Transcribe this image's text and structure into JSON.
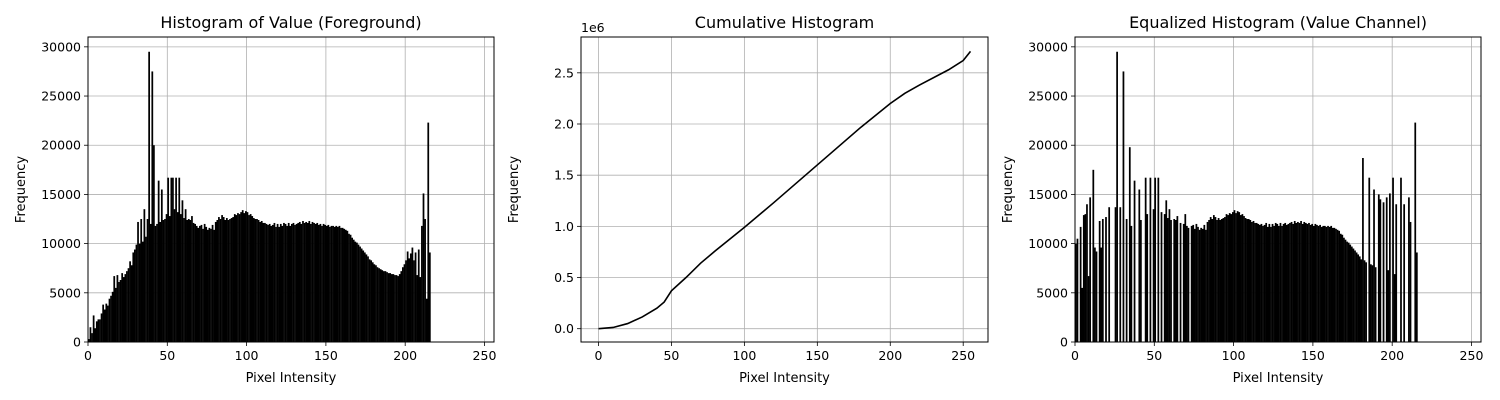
{
  "chart_data": [
    {
      "type": "bar",
      "title": "Histogram of Value (Foreground)",
      "xlabel": "Pixel Intensity",
      "ylabel": "Frequency",
      "xlim": [
        0,
        256
      ],
      "ylim": [
        0,
        31000
      ],
      "xticks": [
        0,
        50,
        100,
        150,
        200,
        250
      ],
      "yticks": [
        0,
        5000,
        10000,
        15000,
        20000,
        25000,
        30000
      ],
      "grid": true,
      "bar_color": "#000000",
      "values": [
        300,
        1500,
        900,
        2700,
        1400,
        2100,
        2300,
        2300,
        2900,
        3800,
        3300,
        3900,
        3700,
        4400,
        4700,
        5100,
        6700,
        5500,
        6800,
        6100,
        6300,
        7000,
        6600,
        6900,
        7200,
        7500,
        8200,
        7800,
        9100,
        9400,
        9900,
        12200,
        10000,
        12500,
        10200,
        13500,
        10700,
        12500,
        29500,
        12000,
        27500,
        20000,
        11800,
        12000,
        16400,
        12200,
        15500,
        12400,
        12500,
        13000,
        16700,
        12800,
        16700,
        16700,
        13500,
        16700,
        13200,
        16700,
        13000,
        14400,
        12600,
        13500,
        12400,
        12500,
        12400,
        12800,
        12100,
        12000,
        11800,
        11600,
        11800,
        11900,
        11500,
        12000,
        11700,
        11400,
        11600,
        11500,
        11900,
        11400,
        12200,
        12400,
        12700,
        12500,
        12900,
        12700,
        12400,
        12600,
        12400,
        12500,
        12600,
        12700,
        13000,
        12900,
        13100,
        13000,
        13200,
        13400,
        13100,
        13300,
        13200,
        12900,
        13000,
        12800,
        12600,
        12500,
        12500,
        12400,
        12200,
        12300,
        12100,
        12100,
        12000,
        11900,
        12000,
        11800,
        11900,
        12100,
        11700,
        12000,
        11700,
        12000,
        11800,
        12100,
        12000,
        11800,
        12100,
        11800,
        12000,
        12100,
        11900,
        12000,
        12100,
        12200,
        12000,
        12300,
        12100,
        12200,
        12100,
        12300,
        12000,
        12200,
        12100,
        12000,
        12100,
        11900,
        12000,
        11800,
        12000,
        11900,
        11800,
        11900,
        11700,
        11800,
        11800,
        11700,
        11800,
        11700,
        11800,
        11600,
        11600,
        11500,
        11400,
        11300,
        11000,
        10900,
        10600,
        10400,
        10200,
        10100,
        9900,
        9700,
        9500,
        9300,
        9100,
        8900,
        8700,
        8400,
        8300,
        8100,
        7900,
        7800,
        7600,
        7500,
        7400,
        7300,
        7200,
        7200,
        7100,
        7000,
        7000,
        6900,
        6900,
        6800,
        6800,
        6700,
        6900,
        7200,
        7600,
        7900,
        8300,
        9200,
        8500,
        9000,
        9600,
        8300,
        9100,
        6800,
        9400,
        6600,
        11800,
        15100,
        12500,
        4400,
        22300,
        9100
      ],
      "x_start": 0
    },
    {
      "type": "line",
      "title": "Cumulative Histogram",
      "xlabel": "Pixel Intensity",
      "ylabel": "Frequency",
      "xlim": [
        -12,
        267
      ],
      "ylim": [
        -0.13,
        2.85
      ],
      "offset_text": "1e6",
      "xticks": [
        0,
        50,
        100,
        150,
        200,
        250
      ],
      "yticks": [
        0.0,
        0.5,
        1.0,
        1.5,
        2.0,
        2.5
      ],
      "ytick_labels": [
        "0.0",
        "0.5",
        "1.0",
        "1.5",
        "2.0",
        "2.5"
      ],
      "grid": true,
      "line_color": "#000000",
      "x": [
        0,
        10,
        20,
        30,
        40,
        45,
        50,
        60,
        70,
        80,
        100,
        120,
        150,
        180,
        200,
        210,
        220,
        240,
        250,
        255
      ],
      "y": [
        0.0,
        0.012,
        0.05,
        0.115,
        0.2,
        0.26,
        0.37,
        0.5,
        0.64,
        0.76,
        0.99,
        1.23,
        1.6,
        1.97,
        2.2,
        2.3,
        2.38,
        2.53,
        2.62,
        2.71
      ]
    },
    {
      "type": "bar",
      "title": "Equalized Histogram (Value Channel)",
      "xlabel": "Pixel Intensity",
      "ylabel": "Frequency",
      "xlim": [
        0,
        256
      ],
      "ylim": [
        0,
        31000
      ],
      "xticks": [
        0,
        50,
        100,
        150,
        200,
        250
      ],
      "yticks": [
        0,
        5000,
        10000,
        15000,
        20000,
        25000,
        30000
      ],
      "grid": true,
      "bar_color": "#000000",
      "x_start": 0,
      "values": [
        10000,
        10500,
        0,
        11700,
        5500,
        12900,
        13000,
        14000,
        6700,
        14700,
        0,
        17500,
        9600,
        9200,
        0,
        12300,
        9600,
        12500,
        0,
        12700,
        0,
        13700,
        0,
        0,
        0,
        13700,
        29500,
        0,
        13700,
        0,
        27500,
        0,
        12500,
        0,
        19800,
        11800,
        0,
        16400,
        0,
        0,
        15500,
        12400,
        0,
        0,
        16700,
        13000,
        0,
        16700,
        0,
        13500,
        16700,
        0,
        16700,
        0,
        13200,
        0,
        13000,
        14400,
        12600,
        13500,
        12400,
        0,
        12500,
        12400,
        12800,
        0,
        12100,
        0,
        12000,
        13000,
        11800,
        11600,
        0,
        11800,
        11900,
        11500,
        12000,
        11700,
        11400,
        11600,
        11500,
        11900,
        11400,
        12200,
        12400,
        12700,
        12500,
        12900,
        12700,
        12400,
        12600,
        12400,
        12500,
        12600,
        12700,
        13000,
        12900,
        13100,
        13000,
        13200,
        13400,
        13100,
        13300,
        13200,
        12900,
        13000,
        12800,
        12600,
        12500,
        12500,
        12400,
        12200,
        12300,
        12100,
        12100,
        12000,
        11900,
        12000,
        11800,
        11900,
        12100,
        11700,
        12000,
        11700,
        12000,
        11800,
        12100,
        12000,
        11800,
        12100,
        11800,
        12000,
        12100,
        11900,
        12000,
        12100,
        12200,
        12000,
        12300,
        12100,
        12200,
        12100,
        12300,
        12000,
        12200,
        12100,
        12000,
        12100,
        11900,
        12000,
        11800,
        12000,
        11900,
        11800,
        11900,
        11700,
        11800,
        11800,
        11700,
        11800,
        11700,
        11800,
        11600,
        11600,
        11500,
        11400,
        11300,
        11000,
        10900,
        10600,
        10400,
        10200,
        10100,
        9900,
        9700,
        9500,
        9300,
        9100,
        8900,
        8700,
        8400,
        18700,
        8300,
        8100,
        0,
        16700,
        7900,
        7800,
        15500,
        7600,
        0,
        15000,
        14500,
        0,
        14200,
        0,
        14700,
        7300,
        15100,
        0,
        16700,
        6900,
        14000,
        0,
        0,
        16700,
        0,
        14000,
        0,
        0,
        14700,
        12200,
        0,
        0,
        22300,
        9100,
        0,
        0,
        0,
        0,
        0,
        0,
        0,
        0,
        0,
        0,
        0,
        0,
        0,
        0,
        0,
        0,
        0,
        0,
        0,
        0,
        0,
        0,
        0,
        0,
        0,
        0,
        0,
        0,
        0,
        0,
        0,
        0,
        0,
        0
      ]
    }
  ]
}
